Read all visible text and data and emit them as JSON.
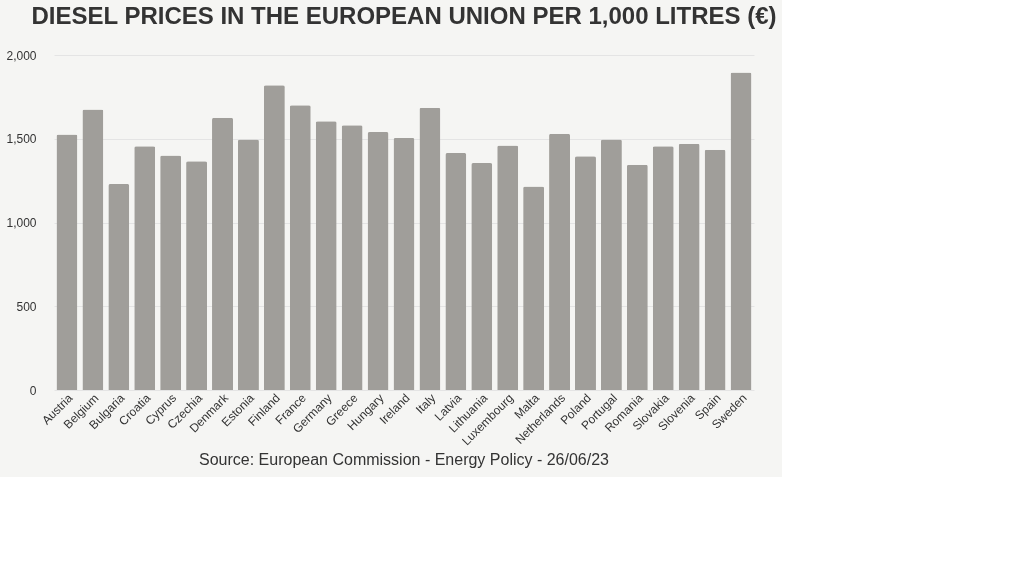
{
  "chart_data": {
    "type": "bar",
    "title": "DIESEL PRICES IN THE EUROPEAN UNION PER 1,000 LITRES (€)",
    "categories": [
      "Austria",
      "Belgium",
      "Bulgaria",
      "Croatia",
      "Cyprus",
      "Czechia",
      "Denmark",
      "Estonia",
      "Finland",
      "France",
      "Germany",
      "Greece",
      "Hungary",
      "Ireland",
      "Italy",
      "Latvia",
      "Lithuania",
      "Luxembourg",
      "Malta",
      "Netherlands",
      "Poland",
      "Portugal",
      "Romania",
      "Slovakia",
      "Slovenia",
      "Spain",
      "Sweden"
    ],
    "values": [
      1525,
      1675,
      1230,
      1455,
      1400,
      1365,
      1625,
      1495,
      1820,
      1700,
      1605,
      1580,
      1540,
      1505,
      1685,
      1415,
      1355,
      1460,
      1215,
      1530,
      1395,
      1495,
      1345,
      1455,
      1470,
      1435,
      1895
    ],
    "color": "#a09e9a",
    "ylim": [
      0,
      2000
    ],
    "yticks": [
      {
        "value": 0,
        "label": "0"
      },
      {
        "value": 500,
        "label": "500"
      },
      {
        "value": 1000,
        "label": "1,000"
      },
      {
        "value": 1500,
        "label": "1,500"
      },
      {
        "value": 2000,
        "label": "2,000"
      }
    ],
    "grid": "y",
    "annotations": [
      "Source: European Commission - Energy Policy - 26/06/23"
    ]
  }
}
